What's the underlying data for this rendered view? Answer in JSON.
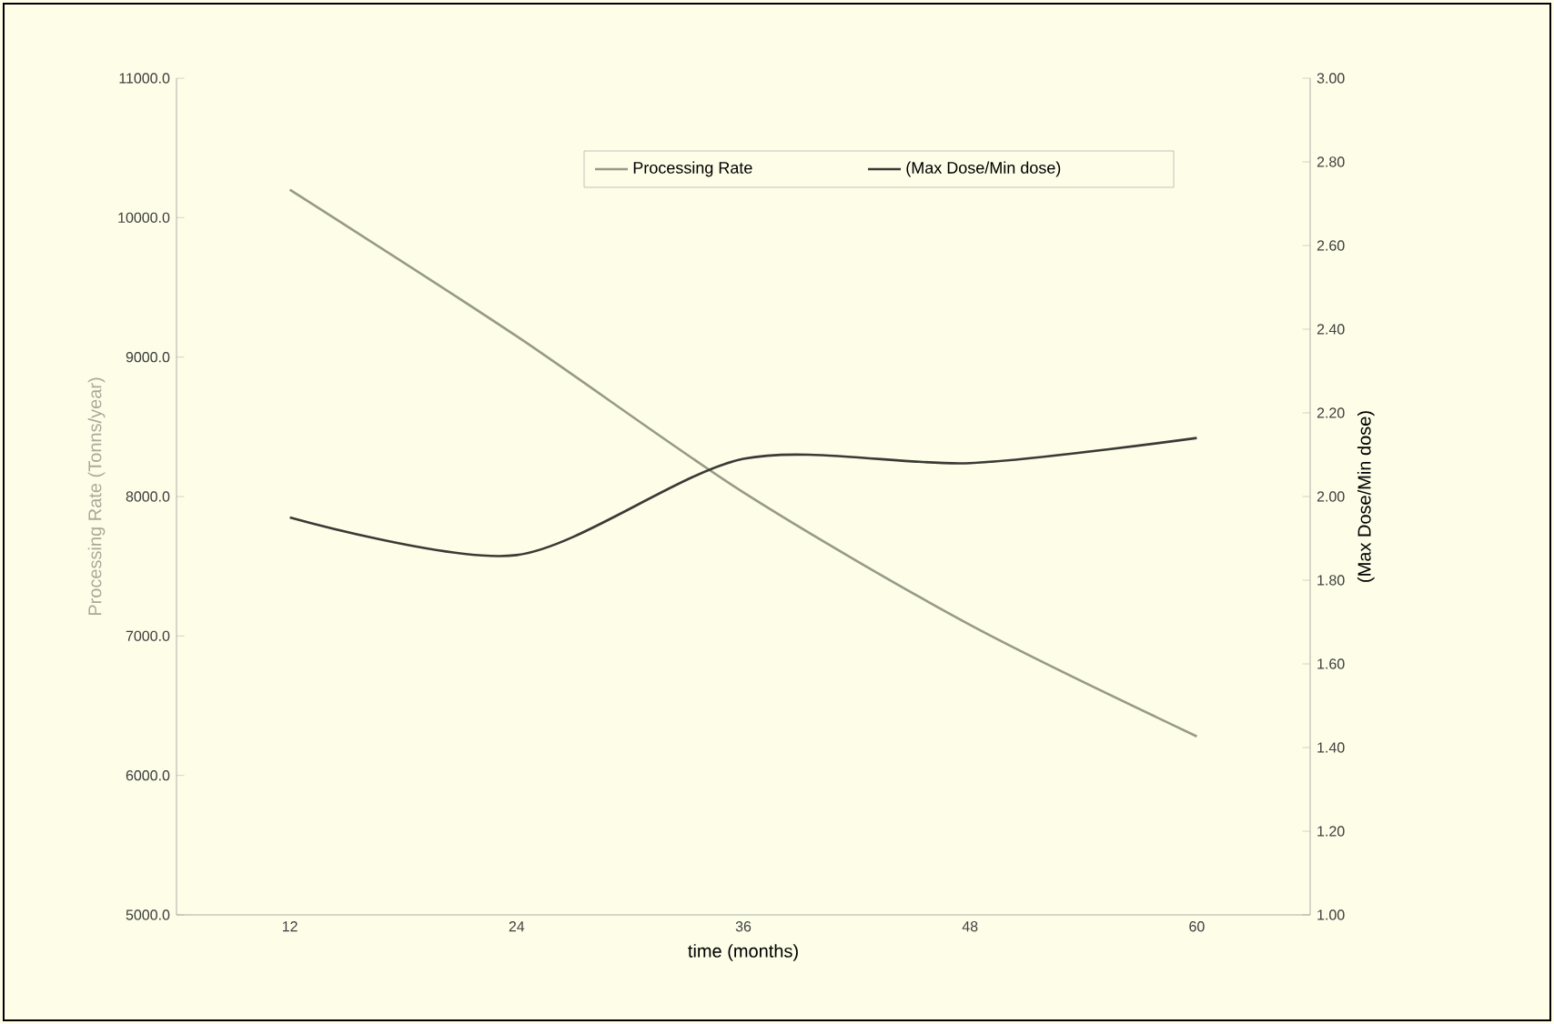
{
  "chart_data": {
    "type": "line",
    "xlabel": "time (months)",
    "ylabel": "Processing Rate (Tonns/year)",
    "y2label": "(Max Dose/Min dose)",
    "categories": [
      "12",
      "24",
      "36",
      "48",
      "60"
    ],
    "series": [
      {
        "name": "Processing Rate",
        "color": "#969b88",
        "values": [
          10200,
          9150,
          8030,
          7080,
          6280
        ]
      },
      {
        "name": "(Max Dose/Min dose)",
        "color": "#3a3a36",
        "axis": "y2",
        "values": [
          1.95,
          1.86,
          2.09,
          2.08,
          2.14
        ]
      }
    ],
    "ylim": [
      5000,
      11000
    ],
    "yticks": [
      {
        "value": 5000,
        "label": "5000.0"
      },
      {
        "value": 6000,
        "label": "6000.0"
      },
      {
        "value": 7000,
        "label": "7000.0"
      },
      {
        "value": 8000,
        "label": "8000.0"
      },
      {
        "value": 9000,
        "label": "9000.0"
      },
      {
        "value": 10000,
        "label": "10000.0"
      },
      {
        "value": 11000,
        "label": "11000.0"
      }
    ],
    "y2lim": [
      1.0,
      3.0
    ],
    "y2ticks": [
      {
        "value": 1.0,
        "label": "1.00"
      },
      {
        "value": 1.2,
        "label": "1.20"
      },
      {
        "value": 1.4,
        "label": "1.40"
      },
      {
        "value": 1.6,
        "label": "1.60"
      },
      {
        "value": 1.8,
        "label": "1.80"
      },
      {
        "value": 2.0,
        "label": "2.00"
      },
      {
        "value": 2.2,
        "label": "2.20"
      },
      {
        "value": 2.4,
        "label": "2.40"
      },
      {
        "value": 2.6,
        "label": "2.60"
      },
      {
        "value": 2.8,
        "label": "2.80"
      },
      {
        "value": 3.0,
        "label": "3.00"
      }
    ],
    "legend": "top",
    "grid": false,
    "marker": "none",
    "line_style": "solid"
  }
}
